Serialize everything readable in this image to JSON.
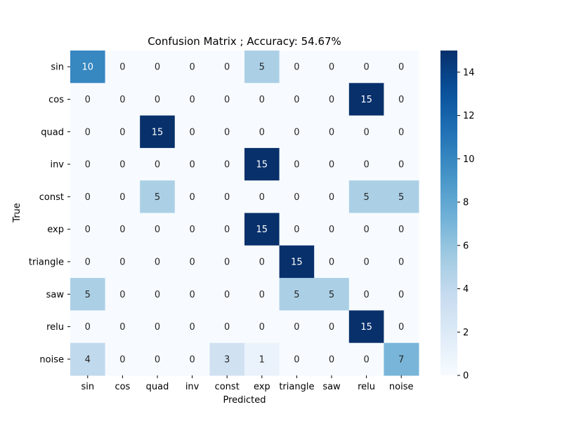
{
  "chart_data": {
    "type": "heatmap",
    "title": "Confusion Matrix ; Accuracy: 54.67%",
    "xlabel": "Predicted",
    "ylabel": "True",
    "x_categories": [
      "sin",
      "cos",
      "quad",
      "inv",
      "const",
      "exp",
      "triangle",
      "saw",
      "relu",
      "noise"
    ],
    "y_categories": [
      "sin",
      "cos",
      "quad",
      "inv",
      "const",
      "exp",
      "triangle",
      "saw",
      "relu",
      "noise"
    ],
    "values": [
      [
        10,
        0,
        0,
        0,
        0,
        5,
        0,
        0,
        0,
        0
      ],
      [
        0,
        0,
        0,
        0,
        0,
        0,
        0,
        0,
        15,
        0
      ],
      [
        0,
        0,
        15,
        0,
        0,
        0,
        0,
        0,
        0,
        0
      ],
      [
        0,
        0,
        0,
        0,
        0,
        15,
        0,
        0,
        0,
        0
      ],
      [
        0,
        0,
        5,
        0,
        0,
        0,
        0,
        0,
        5,
        5
      ],
      [
        0,
        0,
        0,
        0,
        0,
        15,
        0,
        0,
        0,
        0
      ],
      [
        0,
        0,
        0,
        0,
        0,
        0,
        15,
        0,
        0,
        0
      ],
      [
        5,
        0,
        0,
        0,
        0,
        0,
        5,
        5,
        0,
        0
      ],
      [
        0,
        0,
        0,
        0,
        0,
        0,
        0,
        0,
        15,
        0
      ],
      [
        4,
        0,
        0,
        0,
        3,
        1,
        0,
        0,
        0,
        7
      ]
    ],
    "colorbar": {
      "min": 0,
      "max": 15,
      "ticks": [
        0,
        2,
        4,
        6,
        8,
        10,
        12,
        14
      ]
    },
    "colormap": "Blues"
  }
}
